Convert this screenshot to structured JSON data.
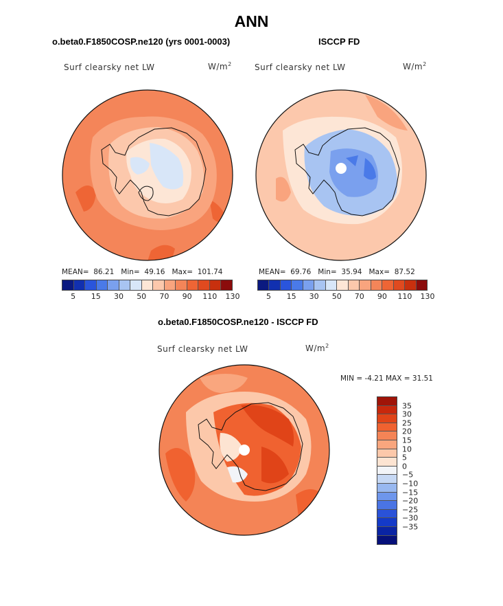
{
  "title": "ANN",
  "panel_left": {
    "case_title": "o.beta0.F1850COSP.ne120 (yrs 0001-0003)",
    "variable": "Surf clearsky net LW",
    "units": "W/m",
    "units_exp": "2",
    "stats": {
      "mean_label": "MEAN=",
      "mean": "86.21",
      "min_label": "Min=",
      "min": "49.16",
      "max_label": "Max=",
      "max": "101.74"
    }
  },
  "panel_right": {
    "case_title": "ISCCP FD",
    "variable": "Surf clearsky net LW",
    "units": "W/m",
    "units_exp": "2",
    "stats": {
      "mean_label": "MEAN=",
      "mean": "69.76",
      "min_label": "Min=",
      "min": "35.94",
      "max_label": "Max=",
      "max": "87.52"
    }
  },
  "panel_diff": {
    "case_title": "o.beta0.F1850COSP.ne120 - ISCCP FD",
    "variable": "Surf clearsky net LW",
    "units": "W/m",
    "units_exp": "2",
    "minmax_text": "MIN =   -4.21  MAX =   31.51"
  },
  "colorbar_main": {
    "colors": [
      "#0b1a80",
      "#1130b0",
      "#2a55dc",
      "#4a7ae8",
      "#7aa0ee",
      "#a8c4f2",
      "#d8e6f8",
      "#fde6d6",
      "#fcc8ac",
      "#f9a47e",
      "#f48559",
      "#ee6535",
      "#e04a1f",
      "#c8300e",
      "#8b0c0c"
    ],
    "tick_labels": [
      "5",
      "15",
      "30",
      "50",
      "70",
      "90",
      "110",
      "130"
    ]
  },
  "colorbar_diff": {
    "colors": [
      "#a01408",
      "#c8280c",
      "#e04418",
      "#f06230",
      "#f48456",
      "#f9a67e",
      "#fcc8aa",
      "#fde4d2",
      "#f2f4f8",
      "#c6d8f4",
      "#98b8f0",
      "#6e96ec",
      "#4a74e4",
      "#2a52d8",
      "#143ac8",
      "#0a24a4",
      "#06107a"
    ],
    "tick_labels": [
      "35",
      "30",
      "25",
      "20",
      "15",
      "10",
      "5",
      "0",
      "−5",
      "−10",
      "−15",
      "−20",
      "−25",
      "−30",
      "−35"
    ]
  }
}
